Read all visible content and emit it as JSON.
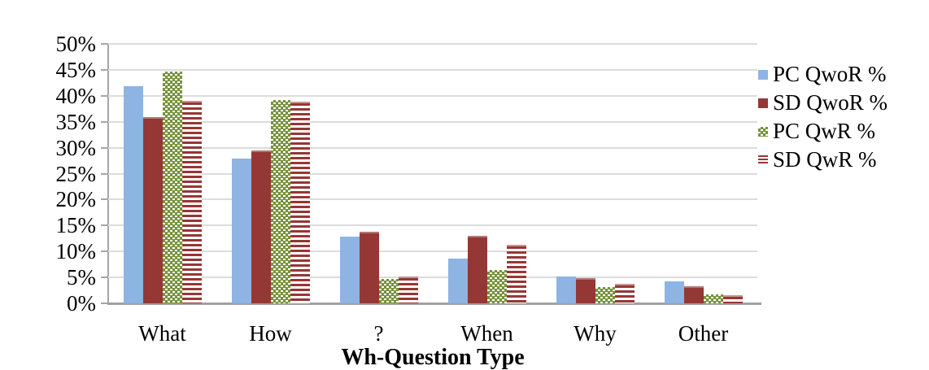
{
  "chart_data": {
    "type": "bar",
    "xlabel": "Wh-Question Type",
    "ylabel": "",
    "categories": [
      "What",
      "How",
      "?",
      "When",
      "Why",
      "Other"
    ],
    "series": [
      {
        "name": "PC QwoR %",
        "style": "solid-blue",
        "color": "#8db4e2",
        "values": [
          41.9,
          27.9,
          12.8,
          8.6,
          5.1,
          4.3
        ]
      },
      {
        "name": "SD QwoR %",
        "style": "solid-red",
        "color": "#953735",
        "values": [
          35.9,
          29.4,
          13.8,
          13.0,
          4.9,
          3.3
        ]
      },
      {
        "name": "PC QwR %",
        "style": "dotted-green",
        "color": "#77933c",
        "values": [
          44.7,
          39.2,
          4.7,
          6.5,
          3.2,
          1.8
        ]
      },
      {
        "name": "SD QwR %",
        "style": "striped-red",
        "color": "#953735",
        "values": [
          39.0,
          38.9,
          5.2,
          11.3,
          3.7,
          1.5
        ]
      }
    ],
    "ylim": [
      0,
      50
    ],
    "ytick_step": 5,
    "ytick_labels": [
      "0%",
      "5%",
      "10%",
      "15%",
      "20%",
      "25%",
      "30%",
      "35%",
      "40%",
      "45%",
      "50%"
    ],
    "grid": true,
    "legend_position": "right"
  },
  "style": {
    "grid_color": "#dcdcdc",
    "axis_color": "#a0a0a0",
    "text_color": "#000000",
    "background": "#ffffff"
  }
}
